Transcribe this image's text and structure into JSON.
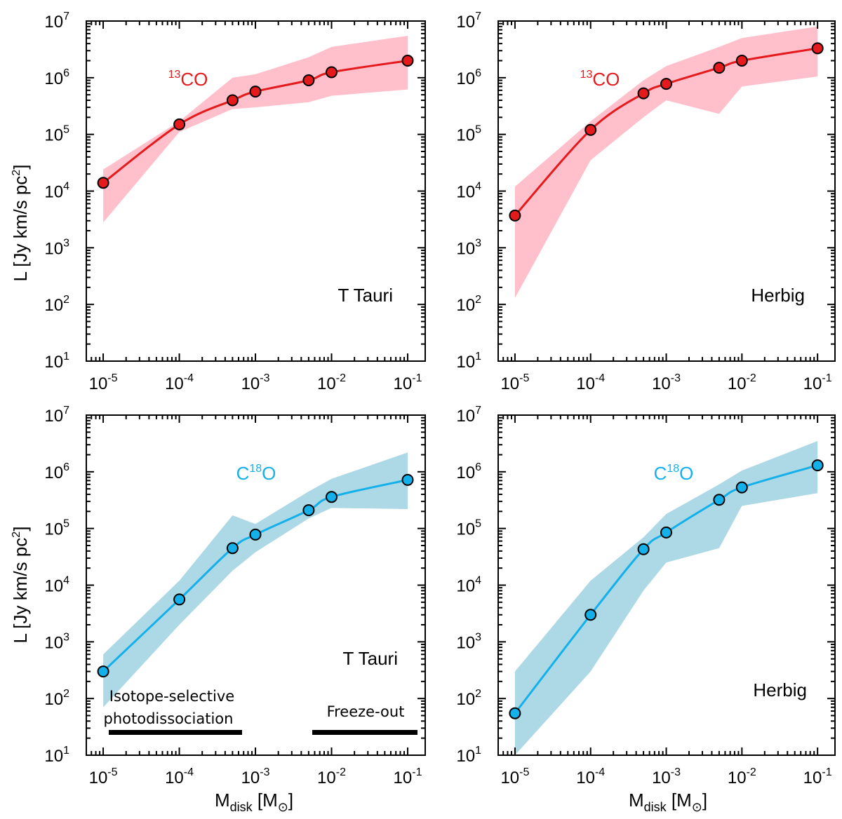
{
  "figure": {
    "y_axis_title_main": "L [Jy km/s pc",
    "y_axis_title_sup": "2",
    "y_axis_title_end": "]",
    "x_axis_title_main": "M",
    "x_axis_title_sub": "disk",
    "x_axis_title_mid": " [M",
    "x_axis_title_sub2": "⊙",
    "x_axis_title_end": "]"
  },
  "colors": {
    "co13_line": "#e41a1c",
    "co13_band": "#ffc0cb",
    "c18o_line": "#14b0ea",
    "c18o_band": "#add8e6"
  },
  "annotations": {
    "isotope_line1": "Isotope-selective",
    "isotope_line2": "photodissociation",
    "freeze_out": "Freeze-out"
  },
  "chart_data": [
    {
      "id": "top-left",
      "type": "line",
      "species_main": "CO",
      "species_pre": "13",
      "species_post": "",
      "species_color": "#e41a1c",
      "band_color": "#ffc0cb",
      "panel_label": "T Tauri",
      "xscale": "log",
      "yscale": "log",
      "xlim": [
        6e-06,
        0.17
      ],
      "ylim": [
        10,
        10000000.0
      ],
      "x_ticks": [
        "10^-5",
        "10^-4",
        "10^-3",
        "10^-2",
        "10^-1"
      ],
      "y_ticks": [
        "10^1",
        "10^2",
        "10^3",
        "10^4",
        "10^5",
        "10^6",
        "10^7"
      ],
      "points_x": [
        1e-05,
        0.0001,
        0.0005,
        0.001,
        0.005,
        0.01,
        0.1
      ],
      "points_y": [
        14000,
        150000,
        400000,
        570000,
        900000,
        1250000,
        2000000
      ],
      "band_upper": [
        24000,
        170000,
        1000000,
        1150000,
        2300000,
        3500000,
        5500000
      ],
      "band_lower": [
        2800,
        110000,
        280000,
        300000,
        370000,
        480000,
        620000
      ]
    },
    {
      "id": "top-right",
      "type": "line",
      "species_main": "CO",
      "species_pre": "13",
      "species_post": "",
      "species_color": "#e41a1c",
      "band_color": "#ffc0cb",
      "panel_label": "Herbig",
      "xscale": "log",
      "yscale": "log",
      "xlim": [
        6e-06,
        0.17
      ],
      "ylim": [
        10,
        10000000.0
      ],
      "x_ticks": [
        "10^-5",
        "10^-4",
        "10^-3",
        "10^-2",
        "10^-1"
      ],
      "y_ticks": [
        "10^1",
        "10^2",
        "10^3",
        "10^4",
        "10^5",
        "10^6",
        "10^7"
      ],
      "points_x": [
        1e-05,
        0.0001,
        0.0005,
        0.001,
        0.005,
        0.01,
        0.1
      ],
      "points_y": [
        3700,
        120000,
        530000,
        780000,
        1500000,
        2000000,
        3300000
      ],
      "band_upper": [
        12000,
        170000,
        900000,
        1600000,
        3500000,
        5000000,
        8000000
      ],
      "band_lower": [
        130,
        35000,
        200000,
        400000,
        230000,
        700000,
        1050000
      ]
    },
    {
      "id": "bottom-left",
      "type": "line",
      "species_main": "C",
      "species_pre": "",
      "species_post": "O",
      "species_sup": "18",
      "species_color": "#14b0ea",
      "band_color": "#add8e6",
      "panel_label": "T Tauri",
      "xscale": "log",
      "yscale": "log",
      "xlim": [
        6e-06,
        0.17
      ],
      "ylim": [
        10,
        10000000.0
      ],
      "x_ticks": [
        "10^-5",
        "10^-4",
        "10^-3",
        "10^-2",
        "10^-1"
      ],
      "y_ticks": [
        "10^1",
        "10^2",
        "10^3",
        "10^4",
        "10^5",
        "10^6",
        "10^7"
      ],
      "points_x": [
        1e-05,
        0.0001,
        0.0005,
        0.001,
        0.005,
        0.01,
        0.1
      ],
      "points_y": [
        300,
        5600,
        45000,
        78000,
        210000,
        360000,
        720000
      ],
      "band_upper": [
        600,
        12000,
        170000,
        120000,
        450000,
        750000,
        2200000
      ],
      "band_lower": [
        70,
        2000,
        18000,
        38000,
        150000,
        230000,
        220000
      ]
    },
    {
      "id": "bottom-right",
      "type": "line",
      "species_main": "C",
      "species_pre": "",
      "species_post": "O",
      "species_sup": "18",
      "species_color": "#14b0ea",
      "band_color": "#add8e6",
      "panel_label": "Herbig",
      "xscale": "log",
      "yscale": "log",
      "xlim": [
        6e-06,
        0.17
      ],
      "ylim": [
        10,
        10000000.0
      ],
      "x_ticks": [
        "10^-5",
        "10^-4",
        "10^-3",
        "10^-2",
        "10^-1"
      ],
      "y_ticks": [
        "10^1",
        "10^2",
        "10^3",
        "10^4",
        "10^5",
        "10^6",
        "10^7"
      ],
      "points_x": [
        1e-05,
        0.0001,
        0.0005,
        0.001,
        0.005,
        0.01,
        0.1
      ],
      "points_y": [
        55,
        3000,
        43000,
        85000,
        320000,
        530000,
        1300000
      ],
      "band_upper": [
        300,
        12000,
        70000,
        180000,
        600000,
        1050000,
        3500000
      ],
      "band_lower": [
        10,
        300,
        8000,
        25000,
        45000,
        250000,
        420000
      ]
    }
  ]
}
